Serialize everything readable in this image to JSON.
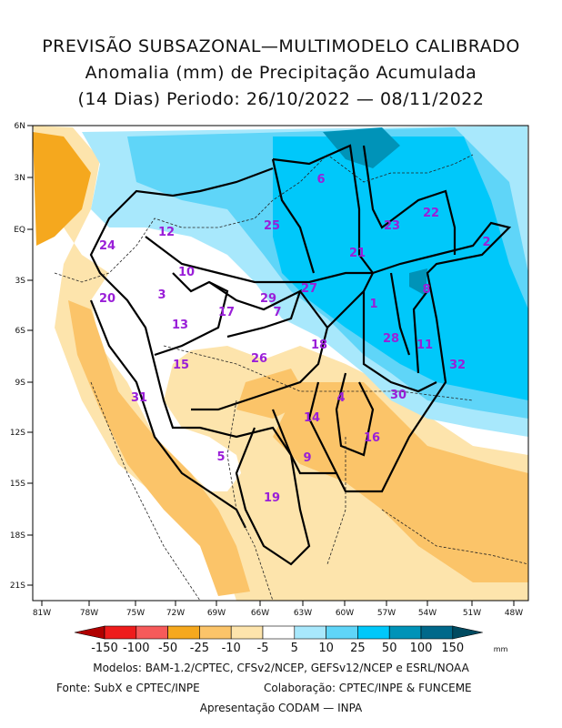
{
  "title": {
    "line1": "PREVISÃO SUBSAZONAL—MULTIMODELO CALIBRADO",
    "line2": "Anomalia (mm) de Precipitação Acumulada",
    "line3": "(14 Dias) Periodo: 26/10/2022 — 08/11/2022"
  },
  "axes": {
    "lat_ticks": [
      "6N",
      "3N",
      "EQ",
      "3S",
      "6S",
      "9S",
      "12S",
      "15S",
      "18S",
      "21S"
    ],
    "lon_ticks": [
      "81W",
      "78W",
      "75W",
      "72W",
      "69W",
      "66W",
      "63W",
      "60W",
      "57W",
      "54W",
      "51W",
      "48W"
    ]
  },
  "basins": [
    "6",
    "25",
    "12",
    "24",
    "23",
    "22",
    "21",
    "2",
    "10",
    "20",
    "3",
    "27",
    "8",
    "29",
    "17",
    "7",
    "1",
    "13",
    "28",
    "11",
    "18",
    "26",
    "15",
    "32",
    "31",
    "30",
    "4",
    "14",
    "16",
    "9",
    "5",
    "19"
  ],
  "legend": {
    "labels": [
      "-150",
      "-100",
      "-50",
      "-25",
      "-10",
      "-5",
      "5",
      "10",
      "25",
      "50",
      "100",
      "150"
    ],
    "unit": "mm",
    "colors": [
      "#b00000",
      "#ee1c1c",
      "#f65a5a",
      "#f5a81e",
      "#fbc469",
      "#fde4ac",
      "#ffffff",
      "#a8e8fc",
      "#5fd5f8",
      "#00c8fa",
      "#0093b8",
      "#00688a",
      "#004a60"
    ]
  },
  "footer": {
    "models": "Modelos: BAM-1.2/CPTEC, CFSv2/NCEP, GEFSv12/NCEP e ESRL/NOAA",
    "source": "Fonte: SubX e CPTEC/INPE",
    "collab": "Colaboração: CPTEC/INPE & FUNCEME",
    "presentation": "Apresentação CODAM — INPA"
  }
}
